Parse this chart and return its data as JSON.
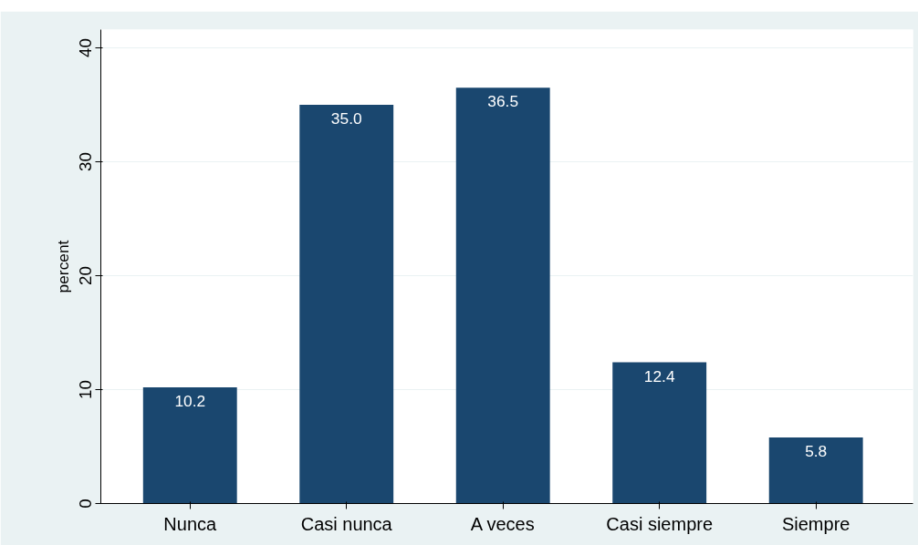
{
  "chart_data": {
    "type": "bar",
    "categories": [
      "Nunca",
      "Casi nunca",
      "A veces",
      "Casi siempre",
      "Siempre"
    ],
    "values": [
      10.2,
      35.0,
      36.5,
      12.4,
      5.8
    ],
    "color": "#1a476f",
    "ylabel": "percent",
    "ylim": [
      0,
      41.6
    ],
    "yticks": [
      0,
      10,
      20,
      30,
      40
    ],
    "grid": "y",
    "value_labels": [
      "10.2",
      "35.0",
      "36.5",
      "12.4",
      "5.8"
    ]
  }
}
